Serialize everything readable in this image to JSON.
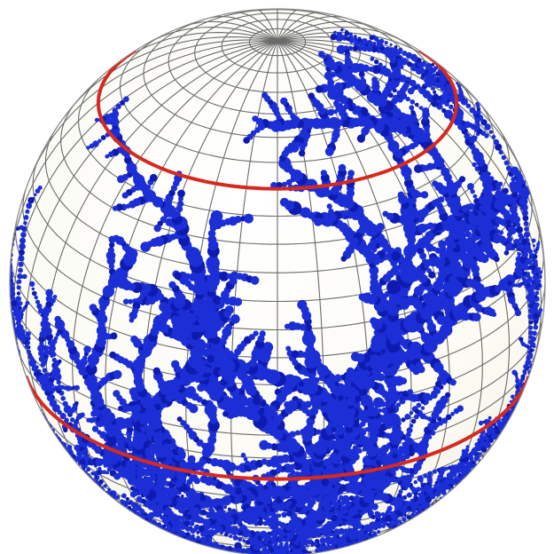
{
  "figure": {
    "subject": "sphere-with-dendritic-growth",
    "colors": {
      "background": "#ffffff",
      "sphere_fill": "#fdfcf6",
      "grid_line": "#6b6b6b",
      "grid_line_light": "#a9a9a9",
      "latitude_ring": "#d42a20",
      "dendrite": "#1c2fd6",
      "dendrite_dark": "#0d1bb0"
    },
    "grid": {
      "meridian_count": 36,
      "parallel_count": 30
    },
    "marked_latitudes_deg": [
      48,
      -18
    ],
    "dendrite_source": "south-pole",
    "view": {
      "tilt_deg": 28,
      "rotation_deg": 0
    }
  }
}
